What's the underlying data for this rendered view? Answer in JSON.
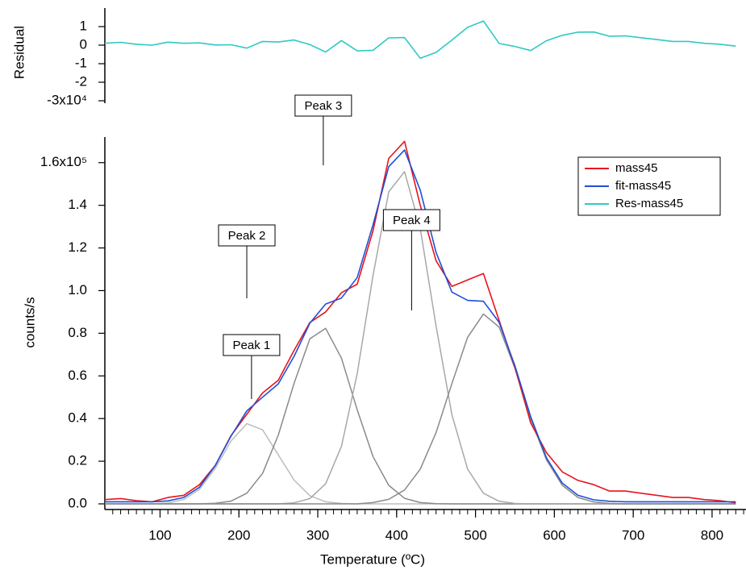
{
  "chart_data": {
    "type": "line",
    "x_label": "Temperature (ºC)",
    "y_label": "counts/s",
    "y2_label": "Residual",
    "x": [
      30,
      50,
      70,
      90,
      110,
      130,
      150,
      170,
      190,
      210,
      230,
      250,
      270,
      290,
      310,
      330,
      350,
      370,
      390,
      410,
      430,
      450,
      470,
      490,
      510,
      530,
      550,
      570,
      590,
      610,
      630,
      650,
      670,
      690,
      710,
      730,
      750,
      770,
      790,
      810,
      830
    ],
    "xlim": [
      30,
      843
    ],
    "xticks": [
      100,
      200,
      300,
      400,
      500,
      600,
      700,
      800
    ],
    "ylim": [
      0,
      172000
    ],
    "yticks": [
      {
        "value": 0,
        "label": "0.0"
      },
      {
        "value": 20000,
        "label": "0.2"
      },
      {
        "value": 40000,
        "label": "0.4"
      },
      {
        "value": 60000,
        "label": "0.6"
      },
      {
        "value": 80000,
        "label": "0.8"
      },
      {
        "value": 100000,
        "label": "1.0"
      },
      {
        "value": 120000,
        "label": "1.2"
      },
      {
        "value": 140000,
        "label": "1.4"
      },
      {
        "value": 160000,
        "label": "1.6x10⁵"
      }
    ],
    "y2lim": [
      -30000,
      20000
    ],
    "y2ticks": [
      {
        "value": 10000,
        "label": "1"
      },
      {
        "value": 0,
        "label": "0"
      },
      {
        "value": -10000,
        "label": "-1"
      },
      {
        "value": -20000,
        "label": "-2"
      },
      {
        "value": -30000,
        "label": "-3x10⁴"
      }
    ],
    "legend": "top-right",
    "series": [
      {
        "name": "mass45",
        "color": "#e8141c",
        "values": [
          2000,
          2500,
          1500,
          1000,
          3000,
          4000,
          9000,
          18000,
          32000,
          42000,
          52000,
          58000,
          72000,
          85000,
          90000,
          99000,
          103000,
          128000,
          162000,
          170000,
          140000,
          114000,
          102000,
          105000,
          108000,
          86000,
          64000,
          38000,
          24000,
          15000,
          11000,
          9000,
          6000,
          6000,
          5000,
          4000,
          3000,
          3000,
          2000,
          1500,
          500
        ]
      },
      {
        "name": "fit-mass45",
        "color": "#1f4fd6",
        "values": [
          1000,
          1000,
          1000,
          1000,
          1400,
          3000,
          7800,
          17900,
          31800,
          43600,
          50000,
          56300,
          69200,
          84700,
          93700,
          96500,
          106100,
          130800,
          158100,
          165900,
          147100,
          117900,
          99300,
          95400,
          95000,
          85100,
          64700,
          40900,
          21600,
          9700,
          4000,
          1900,
          1200,
          1000,
          1000,
          1000,
          1000,
          1000,
          1000,
          1000,
          1000
        ]
      },
      {
        "name": "Res-mass45",
        "color": "#2ec9c4",
        "axis": "y2",
        "values": [
          1000,
          1500,
          500,
          0,
          1600,
          1000,
          1200,
          100,
          200,
          -1600,
          2000,
          1700,
          2800,
          300,
          -3700,
          2500,
          -3100,
          -2800,
          3900,
          4100,
          -7100,
          -3900,
          2700,
          9600,
          13000,
          900,
          -700,
          -2900,
          2400,
          5300,
          7000,
          7100,
          4800,
          5000,
          4000,
          3000,
          2000,
          2000,
          1000,
          500,
          -500
        ]
      }
    ],
    "peaks": [
      {
        "color": "#bdbdbd",
        "values": [
          0,
          0,
          0,
          0,
          400,
          2000,
          6800,
          16600,
          29500,
          37600,
          34700,
          23000,
          11100,
          3800,
          1000,
          200,
          0,
          0,
          0,
          0,
          0,
          0,
          0,
          0,
          0,
          0,
          0,
          0,
          0,
          0,
          0,
          0,
          0,
          0,
          0,
          0,
          0,
          0,
          0,
          0,
          0
        ]
      },
      {
        "color": "#8a8a8a",
        "values": [
          0,
          0,
          0,
          0,
          0,
          0,
          0,
          300,
          1300,
          5000,
          14300,
          32300,
          56600,
          77400,
          82300,
          68300,
          44100,
          22200,
          8700,
          2600,
          600,
          100,
          0,
          0,
          0,
          0,
          0,
          0,
          0,
          0,
          0,
          0,
          0,
          0,
          0,
          0,
          0,
          0,
          0,
          0,
          0
        ]
      },
      {
        "color": "#a8a8a8",
        "values": [
          0,
          0,
          0,
          0,
          0,
          0,
          0,
          0,
          0,
          0,
          0,
          0,
          500,
          2500,
          9400,
          27000,
          61000,
          107000,
          146300,
          155800,
          129200,
          83400,
          41900,
          16300,
          5000,
          1200,
          200,
          0,
          0,
          0,
          0,
          0,
          0,
          0,
          0,
          0,
          0,
          0,
          0,
          0,
          0
        ]
      },
      {
        "color": "#8a8a8a",
        "values": [
          0,
          0,
          0,
          0,
          0,
          0,
          0,
          0,
          0,
          0,
          0,
          0,
          0,
          0,
          0,
          0,
          0,
          600,
          2100,
          6500,
          16300,
          33400,
          56400,
          78100,
          89000,
          82900,
          63500,
          39900,
          20600,
          8700,
          3000,
          900,
          200,
          0,
          0,
          0,
          0,
          0,
          0,
          0,
          0
        ]
      }
    ],
    "annotations": [
      {
        "text": "Peak 1",
        "x": 216
      },
      {
        "text": "Peak 2",
        "x": 210
      },
      {
        "text": "Peak 3",
        "x": 307
      },
      {
        "text": "Peak 4",
        "x": 419
      }
    ]
  }
}
